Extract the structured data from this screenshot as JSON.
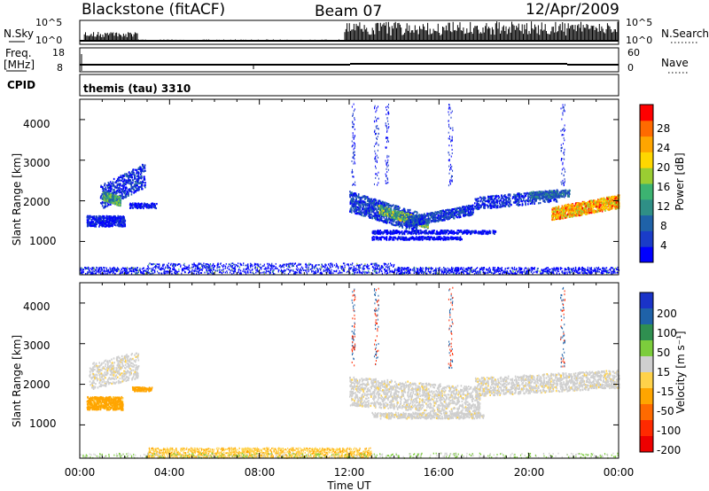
{
  "header": {
    "station": "Blackstone (fitACF)",
    "beam": "Beam 07",
    "date": "12/Apr/2009"
  },
  "strips": {
    "nsky_label": "N.Sky",
    "nsearch_label": "N.Search",
    "nsky_ticks": [
      "10^5",
      "10^0"
    ],
    "nsearch_ticks": [
      "10^5",
      "10^0"
    ],
    "freq_label": "Freq.",
    "freq_unit": "[MHz]",
    "freq_ticks": [
      "18",
      "8"
    ],
    "nave_label": "Nave",
    "nave_ticks": [
      "60",
      "0"
    ],
    "cpid_label": "CPID",
    "cpid_text": "themis (tau) 3310"
  },
  "x_axis": {
    "label": "Time UT",
    "ticks": [
      "00:00",
      "04:00",
      "08:00",
      "12:00",
      "16:00",
      "20:00",
      "00:00"
    ],
    "range_hours": [
      0,
      24
    ]
  },
  "power_panel": {
    "ylabel": "Slant Range [km]",
    "yticks": [
      "4000",
      "3000",
      "2000",
      "1000"
    ],
    "colorbar_label": "Power [dB]",
    "colorbar_ticks": [
      "28",
      "24",
      "20",
      "16",
      "12",
      "8",
      "4"
    ],
    "colors": [
      "#0000ff",
      "#1a3cc8",
      "#1f62a8",
      "#2f8f86",
      "#3cb371",
      "#9acd32",
      "#ffd700",
      "#ffa500",
      "#ff6a00",
      "#ff0000"
    ]
  },
  "velocity_panel": {
    "ylabel": "Slant Range [km]",
    "yticks": [
      "4000",
      "3000",
      "2000",
      "1000"
    ],
    "colorbar_label": "Velocity [m s⁻¹]",
    "colorbar_ticks": [
      "200",
      "100",
      "50",
      "15",
      "-15",
      "-50",
      "-100",
      "-200"
    ],
    "colors": [
      "#1a33c8",
      "#1f62a8",
      "#2f8f50",
      "#7ccd3c",
      "#cfcfcf",
      "#ffd24a",
      "#ffa500",
      "#ff6a00",
      "#ff2a00",
      "#ee0000"
    ]
  },
  "chart_data": [
    {
      "type": "heatmap",
      "title": "Power",
      "x_range_hours": [
        0,
        24
      ],
      "ylim_km": [
        180,
        4500
      ],
      "regions": [
        {
          "t": [
            0.2,
            2.9
          ],
          "r": [
            1300,
            2900
          ],
          "level": "low-mid"
        },
        {
          "t": [
            11.8,
            17.5
          ],
          "r": [
            1100,
            2100
          ],
          "level": "low-high"
        },
        {
          "t": [
            17.5,
            24.0
          ],
          "r": [
            1500,
            2300
          ],
          "level": "mid-high"
        },
        {
          "t": [
            0.0,
            24.0
          ],
          "r": [
            180,
            350
          ],
          "level": "low"
        }
      ]
    },
    {
      "type": "heatmap",
      "title": "Velocity",
      "x_range_hours": [
        0,
        24
      ],
      "ylim_km": [
        180,
        4500
      ],
      "regions": [
        {
          "t": [
            0.3,
            2.6
          ],
          "r": [
            1350,
            1800
          ],
          "velocity": "-50 to -100"
        },
        {
          "t": [
            0.3,
            2.6
          ],
          "r": [
            1800,
            2700
          ],
          "velocity": "-15 to 15"
        },
        {
          "t": [
            11.8,
            24.0
          ],
          "r": [
            1100,
            2300
          ],
          "velocity": "-15 to 15"
        },
        {
          "t": [
            4.0,
            12.5
          ],
          "r": [
            180,
            350
          ],
          "velocity": "-15 to -50"
        }
      ]
    }
  ]
}
